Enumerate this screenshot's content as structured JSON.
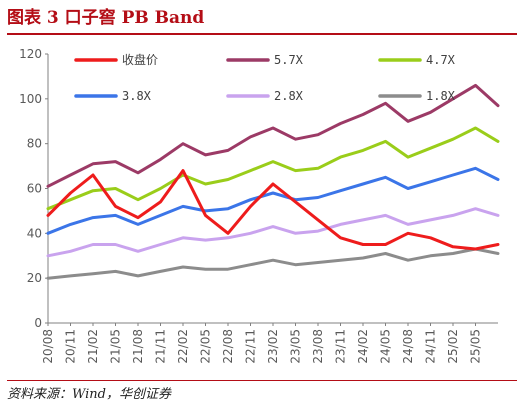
{
  "header": {
    "title": "图表 3    口子窖 PB Band"
  },
  "footer": {
    "source": "资料来源：Wind，华创证券"
  },
  "chart_data": {
    "type": "line",
    "x": [
      "20/08",
      "20/11",
      "21/02",
      "21/05",
      "21/08",
      "21/11",
      "22/02",
      "22/05",
      "22/08",
      "22/11",
      "23/02",
      "23/05",
      "23/08",
      "23/11",
      "24/02",
      "24/05",
      "24/08",
      "24/11",
      "25/02",
      "25/05",
      "25/08"
    ],
    "xticks": [
      "20/08",
      "20/11",
      "21/02",
      "21/05",
      "21/08",
      "21/11",
      "22/02",
      "22/05",
      "22/08",
      "22/11",
      "23/02",
      "23/05",
      "23/08",
      "23/11",
      "24/02",
      "24/05",
      "24/08",
      "24/11",
      "25/02",
      "25/05"
    ],
    "ylim": [
      0,
      120
    ],
    "yticks": [
      0,
      20,
      40,
      60,
      80,
      100,
      120
    ],
    "xlabel": "",
    "ylabel": "",
    "legend_position": "top",
    "series": [
      {
        "name": "收盘价",
        "color": "#ee1c1c",
        "values": [
          48,
          58,
          66,
          52,
          47,
          54,
          68,
          48,
          40,
          52,
          62,
          54,
          46,
          38,
          35,
          35,
          40,
          38,
          34,
          33,
          35
        ]
      },
      {
        "name": "5.7X",
        "color": "#9c3a66",
        "values": [
          61,
          66,
          71,
          72,
          67,
          73,
          80,
          75,
          77,
          83,
          87,
          82,
          84,
          89,
          93,
          98,
          90,
          94,
          100,
          106,
          97
        ]
      },
      {
        "name": "4.7X",
        "color": "#9acd1a",
        "values": [
          51,
          55,
          59,
          60,
          55,
          60,
          66,
          62,
          64,
          68,
          72,
          68,
          69,
          74,
          77,
          81,
          74,
          78,
          82,
          87,
          81
        ]
      },
      {
        "name": "3.8X",
        "color": "#3b75e8",
        "values": [
          40,
          44,
          47,
          48,
          44,
          48,
          52,
          50,
          51,
          55,
          58,
          55,
          56,
          59,
          62,
          65,
          60,
          63,
          66,
          69,
          64
        ]
      },
      {
        "name": "2.8X",
        "color": "#c9a3ee",
        "values": [
          30,
          32,
          35,
          35,
          32,
          35,
          38,
          37,
          38,
          40,
          43,
          40,
          41,
          44,
          46,
          48,
          44,
          46,
          48,
          51,
          48
        ]
      },
      {
        "name": "1.8X",
        "color": "#8c8c8c",
        "values": [
          20,
          21,
          22,
          23,
          21,
          23,
          25,
          24,
          24,
          26,
          28,
          26,
          27,
          28,
          29,
          31,
          28,
          30,
          31,
          33,
          31
        ]
      }
    ]
  }
}
